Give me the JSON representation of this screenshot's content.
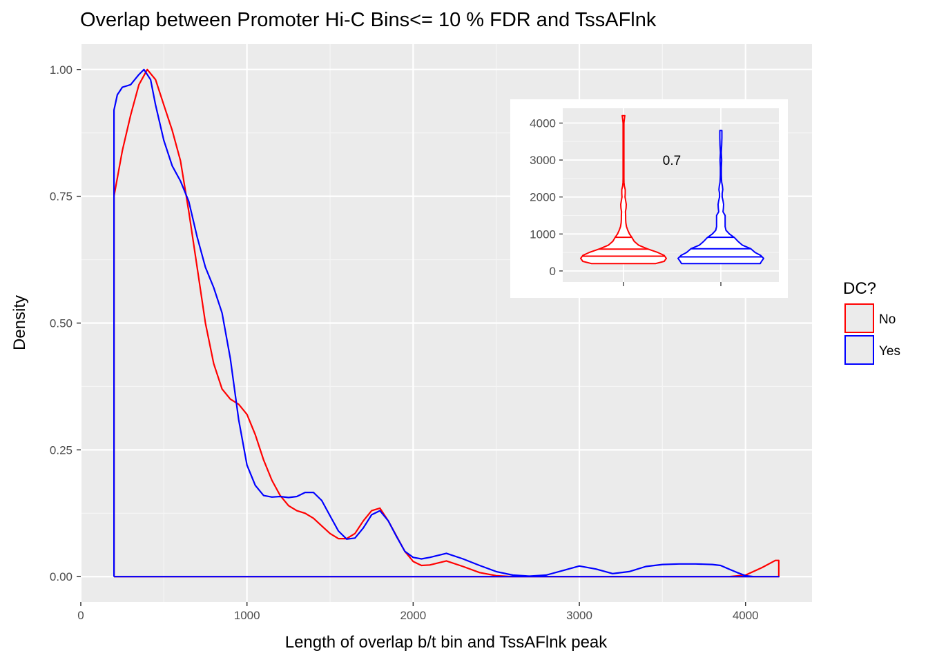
{
  "chart_data": {
    "type": "line",
    "title": "Overlap between Promoter Hi-C Bins<= 10 % FDR and TssAFlnk",
    "xlabel": "Length of overlap b/t bin and TssAFlnk peak",
    "ylabel": "Density",
    "xlim": [
      0,
      4400
    ],
    "ylim": [
      -0.05,
      1.05
    ],
    "x_ticks": [
      0,
      1000,
      2000,
      3000,
      4000
    ],
    "x_tick_labels": [
      "0",
      "1000",
      "2000",
      "3000",
      "4000"
    ],
    "y_ticks": [
      0,
      0.25,
      0.5,
      0.75,
      1.0
    ],
    "y_tick_labels": [
      "0.00",
      "0.25",
      "0.50",
      "0.75",
      "1.00"
    ],
    "grid": true,
    "legend": {
      "title": "DC?",
      "position": "right",
      "entries": [
        {
          "label": "No",
          "color": "#ff0000"
        },
        {
          "label": "Yes",
          "color": "#0000ff"
        }
      ]
    },
    "series": [
      {
        "name": "No",
        "color": "#ff0000",
        "points": [
          [
            200,
            0
          ],
          [
            200,
            0.75
          ],
          [
            250,
            0.84
          ],
          [
            300,
            0.91
          ],
          [
            350,
            0.97
          ],
          [
            400,
            1.0
          ],
          [
            450,
            0.98
          ],
          [
            500,
            0.93
          ],
          [
            550,
            0.88
          ],
          [
            600,
            0.82
          ],
          [
            650,
            0.72
          ],
          [
            700,
            0.61
          ],
          [
            750,
            0.5
          ],
          [
            800,
            0.42
          ],
          [
            850,
            0.37
          ],
          [
            900,
            0.35
          ],
          [
            950,
            0.34
          ],
          [
            1000,
            0.32
          ],
          [
            1050,
            0.28
          ],
          [
            1100,
            0.23
          ],
          [
            1150,
            0.19
          ],
          [
            1200,
            0.16
          ],
          [
            1250,
            0.14
          ],
          [
            1300,
            0.13
          ],
          [
            1350,
            0.125
          ],
          [
            1400,
            0.115
          ],
          [
            1450,
            0.1
          ],
          [
            1500,
            0.085
          ],
          [
            1550,
            0.075
          ],
          [
            1600,
            0.075
          ],
          [
            1650,
            0.085
          ],
          [
            1700,
            0.11
          ],
          [
            1750,
            0.13
          ],
          [
            1800,
            0.135
          ],
          [
            1850,
            0.11
          ],
          [
            1900,
            0.08
          ],
          [
            1950,
            0.05
          ],
          [
            2000,
            0.03
          ],
          [
            2050,
            0.022
          ],
          [
            2100,
            0.023
          ],
          [
            2200,
            0.031
          ],
          [
            2300,
            0.02
          ],
          [
            2400,
            0.008
          ],
          [
            2500,
            0.002
          ],
          [
            2600,
            0.0
          ],
          [
            3000,
            0.0
          ],
          [
            3500,
            0.0
          ],
          [
            3900,
            0.0
          ],
          [
            4000,
            0.003
          ],
          [
            4100,
            0.018
          ],
          [
            4180,
            0.032
          ],
          [
            4200,
            0.032
          ],
          [
            4200,
            0
          ],
          [
            200,
            0
          ]
        ]
      },
      {
        "name": "Yes",
        "color": "#0000ff",
        "points": [
          [
            200,
            0
          ],
          [
            200,
            0.92
          ],
          [
            220,
            0.95
          ],
          [
            250,
            0.965
          ],
          [
            300,
            0.97
          ],
          [
            350,
            0.99
          ],
          [
            380,
            1.0
          ],
          [
            420,
            0.98
          ],
          [
            450,
            0.93
          ],
          [
            500,
            0.86
          ],
          [
            550,
            0.81
          ],
          [
            600,
            0.78
          ],
          [
            650,
            0.74
          ],
          [
            700,
            0.67
          ],
          [
            750,
            0.61
          ],
          [
            800,
            0.57
          ],
          [
            850,
            0.52
          ],
          [
            900,
            0.43
          ],
          [
            950,
            0.31
          ],
          [
            1000,
            0.22
          ],
          [
            1050,
            0.18
          ],
          [
            1100,
            0.16
          ],
          [
            1150,
            0.157
          ],
          [
            1200,
            0.158
          ],
          [
            1250,
            0.156
          ],
          [
            1300,
            0.158
          ],
          [
            1350,
            0.166
          ],
          [
            1400,
            0.166
          ],
          [
            1450,
            0.15
          ],
          [
            1500,
            0.12
          ],
          [
            1550,
            0.09
          ],
          [
            1600,
            0.074
          ],
          [
            1650,
            0.076
          ],
          [
            1700,
            0.096
          ],
          [
            1750,
            0.122
          ],
          [
            1800,
            0.13
          ],
          [
            1850,
            0.11
          ],
          [
            1900,
            0.079
          ],
          [
            1950,
            0.05
          ],
          [
            2000,
            0.038
          ],
          [
            2050,
            0.035
          ],
          [
            2100,
            0.038
          ],
          [
            2200,
            0.046
          ],
          [
            2300,
            0.035
          ],
          [
            2400,
            0.022
          ],
          [
            2500,
            0.01
          ],
          [
            2600,
            0.003
          ],
          [
            2700,
            0.001
          ],
          [
            2800,
            0.003
          ],
          [
            2900,
            0.012
          ],
          [
            3000,
            0.021
          ],
          [
            3100,
            0.015
          ],
          [
            3200,
            0.006
          ],
          [
            3300,
            0.01
          ],
          [
            3400,
            0.02
          ],
          [
            3500,
            0.024
          ],
          [
            3600,
            0.025
          ],
          [
            3700,
            0.025
          ],
          [
            3800,
            0.024
          ],
          [
            3850,
            0.022
          ],
          [
            3900,
            0.015
          ],
          [
            3950,
            0.008
          ],
          [
            4000,
            0.002
          ],
          [
            4050,
            0.0
          ],
          [
            4200,
            0.0
          ],
          [
            200,
            0
          ]
        ]
      }
    ],
    "inset": {
      "type": "violin",
      "ylim": [
        -300,
        4400
      ],
      "y_ticks": [
        0,
        1000,
        2000,
        3000,
        4000
      ],
      "y_tick_labels": [
        "0",
        "1000",
        "2000",
        "3000",
        "4000"
      ],
      "annotation": "0.7",
      "annotation_y": 3000,
      "groups": [
        {
          "name": "No",
          "color": "#ff0000",
          "quantiles": [
            200,
            400,
            590,
            910
          ],
          "profile": [
            [
              200,
              0.75
            ],
            [
              260,
              0.95
            ],
            [
              340,
              1.0
            ],
            [
              420,
              0.95
            ],
            [
              500,
              0.8
            ],
            [
              600,
              0.55
            ],
            [
              700,
              0.35
            ],
            [
              800,
              0.25
            ],
            [
              900,
              0.2
            ],
            [
              1000,
              0.14
            ],
            [
              1100,
              0.1
            ],
            [
              1200,
              0.07
            ],
            [
              1300,
              0.055
            ],
            [
              1400,
              0.05
            ],
            [
              1500,
              0.05
            ],
            [
              1600,
              0.045
            ],
            [
              1700,
              0.06
            ],
            [
              1800,
              0.065
            ],
            [
              1900,
              0.05
            ],
            [
              2000,
              0.035
            ],
            [
              2100,
              0.04
            ],
            [
              2200,
              0.04
            ],
            [
              2300,
              0.02
            ],
            [
              2400,
              0.012
            ],
            [
              2500,
              0.01
            ],
            [
              3000,
              0.01
            ],
            [
              3500,
              0.01
            ],
            [
              4000,
              0.01
            ],
            [
              4100,
              0.02
            ],
            [
              4200,
              0.03
            ]
          ]
        },
        {
          "name": "Yes",
          "color": "#0000ff",
          "quantiles": [
            200,
            380,
            600,
            910
          ],
          "profile": [
            [
              200,
              0.92
            ],
            [
              260,
              0.95
            ],
            [
              340,
              1.0
            ],
            [
              420,
              0.93
            ],
            [
              500,
              0.8
            ],
            [
              600,
              0.7
            ],
            [
              700,
              0.5
            ],
            [
              800,
              0.4
            ],
            [
              900,
              0.32
            ],
            [
              1000,
              0.2
            ],
            [
              1100,
              0.12
            ],
            [
              1200,
              0.1
            ],
            [
              1300,
              0.1
            ],
            [
              1400,
              0.1
            ],
            [
              1500,
              0.1
            ],
            [
              1600,
              0.05
            ],
            [
              1700,
              0.06
            ],
            [
              1800,
              0.065
            ],
            [
              1900,
              0.05
            ],
            [
              2000,
              0.03
            ],
            [
              2100,
              0.03
            ],
            [
              2200,
              0.045
            ],
            [
              2300,
              0.035
            ],
            [
              2400,
              0.02
            ],
            [
              2500,
              0.015
            ],
            [
              2600,
              0.012
            ],
            [
              2800,
              0.012
            ],
            [
              3000,
              0.02
            ],
            [
              3200,
              0.01
            ],
            [
              3400,
              0.02
            ],
            [
              3600,
              0.025
            ],
            [
              3700,
              0.025
            ],
            [
              3800,
              0.025
            ]
          ]
        }
      ]
    }
  }
}
